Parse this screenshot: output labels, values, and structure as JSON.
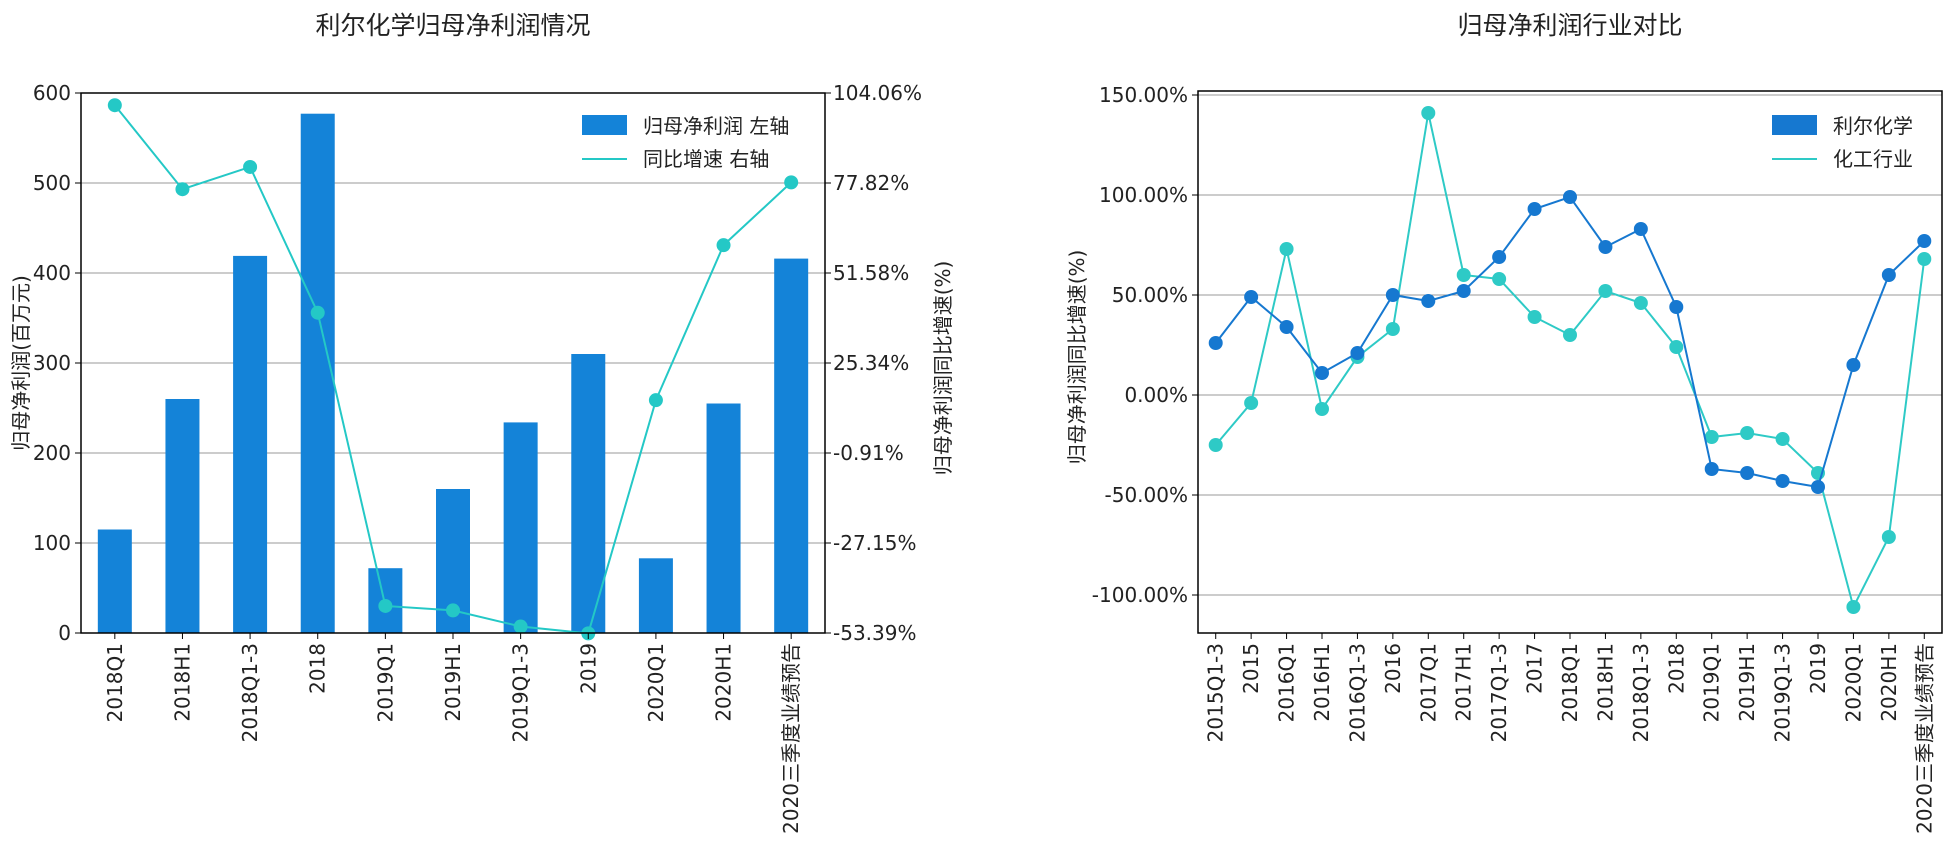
{
  "colors": {
    "bar": "#1483d8",
    "line_left": "#24c8c6",
    "line_company": "#1678d0",
    "line_industry": "#2ecac6",
    "grid": "#9a9a9a",
    "axis": "#000000"
  },
  "chart_data": [
    {
      "type": "bar",
      "title": "利尔化学归母净利润情况",
      "categories": [
        "2018Q1",
        "2018H1",
        "2018Q1-3",
        "2018",
        "2019Q1",
        "2019H1",
        "2019Q1-3",
        "2019",
        "2020Q1",
        "2020H1",
        "2020三季度业绩预告"
      ],
      "series": [
        {
          "name": "归母净利润 左轴",
          "type": "bar",
          "axis": "left",
          "values": [
            115,
            260,
            419,
            577,
            72,
            160,
            234,
            310,
            83,
            255,
            416
          ]
        },
        {
          "name": "同比增速 右轴",
          "type": "line",
          "axis": "right",
          "values": [
            100.5,
            76.0,
            82.5,
            40.0,
            -45.5,
            -46.8,
            -51.5,
            -53.5,
            14.5,
            59.7,
            78.0
          ]
        }
      ],
      "ylabel": "归母净利润(百万元)",
      "y2label": "归母净利润同比增速(%)",
      "ylim": [
        0,
        600
      ],
      "yticks": [
        "0",
        "100",
        "200",
        "300",
        "400",
        "500",
        "600"
      ],
      "y2lim": [
        -53.39,
        104.06
      ],
      "y2ticks": [
        "-53.39%",
        "-27.15%",
        "-0.91%",
        "25.34%",
        "51.58%",
        "77.82%",
        "104.06%"
      ],
      "grid": true,
      "legend": "top-right"
    },
    {
      "type": "line",
      "title": "归母净利润行业对比",
      "categories": [
        "2015Q1-3",
        "2015",
        "2016Q1",
        "2016H1",
        "2016Q1-3",
        "2016",
        "2017Q1",
        "2017H1",
        "2017Q1-3",
        "2017",
        "2018Q1",
        "2018H1",
        "2018Q1-3",
        "2018",
        "2019Q1",
        "2019H1",
        "2019Q1-3",
        "2019",
        "2020Q1",
        "2020H1",
        "2020三季度业绩预告"
      ],
      "series": [
        {
          "name": "利尔化学",
          "values": [
            26,
            49,
            34,
            11,
            21,
            50,
            47,
            52,
            69,
            93,
            99,
            74,
            83,
            44,
            -37,
            -39,
            -43,
            -46,
            15,
            60,
            77
          ]
        },
        {
          "name": "化工行业",
          "values": [
            -25,
            -4,
            73,
            -7,
            19,
            33,
            141,
            60,
            58,
            39,
            30,
            52,
            46,
            24,
            -21,
            -19,
            -22,
            -39,
            -106,
            -71,
            68
          ]
        }
      ],
      "ylabel": "归母净利润同比增速(%)",
      "ylim": [
        -119,
        152
      ],
      "yticks": [
        -100,
        -50,
        0,
        50,
        100,
        150
      ],
      "ytick_labels": [
        "-100.00%",
        "-50.00%",
        "0.00%",
        "50.00%",
        "100.00%",
        "150.00%"
      ],
      "grid": true,
      "legend": "top-right"
    }
  ]
}
